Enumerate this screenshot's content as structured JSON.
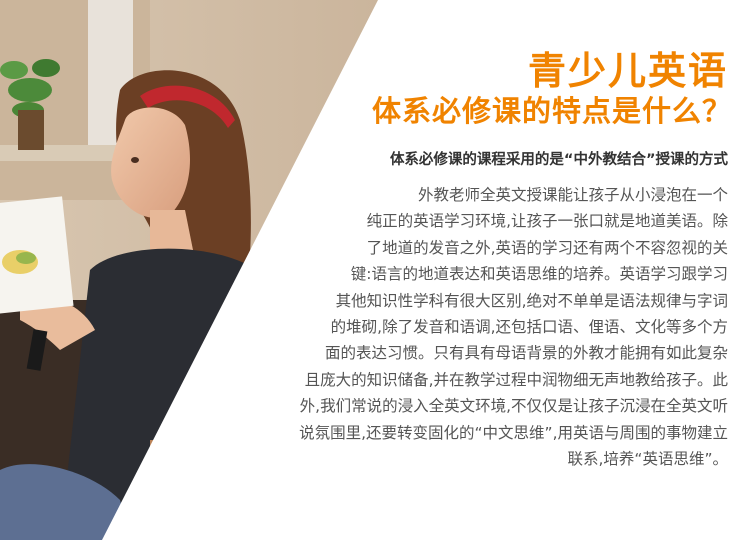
{
  "colors": {
    "accent": "#f08300",
    "lead_text": "#333333",
    "body_text": "#555555",
    "background": "#ffffff"
  },
  "headline": {
    "title": "青少儿英语",
    "subtitle": "体系必修课的特点是什么？"
  },
  "lead": "体系必修课的课程采用的是“中外教结合”授课的方式",
  "body_lines": [
    "外教老师全英文授课能让孩子从小浸泡在一个",
    "纯正的英语学习环境,让孩子一张口就是地道美语。除",
    "了地道的发音之外,英语的学习还有两个不容忽视的关",
    "键:语言的地道表达和英语思维的培养。英语学习跟学习",
    "其他知识性学科有很大区别,绝对不单单是语法规律与字词",
    "的堆砌,除了发音和语调,还包括口语、俚语、文化等多个方",
    "面的表达习惯。只有具有母语背景的外教才能拥有如此复杂",
    "且庞大的知识储备,并在教学过程中润物细无声地教给孩子。此",
    "外,我们常说的浸入全英文环境,不仅仅是让孩子沉浸在全英文听",
    "说氛围里,还要转变固化的“中文思维”,用英语与周围的事物建立",
    "联系,培养“英语思维”。"
  ]
}
